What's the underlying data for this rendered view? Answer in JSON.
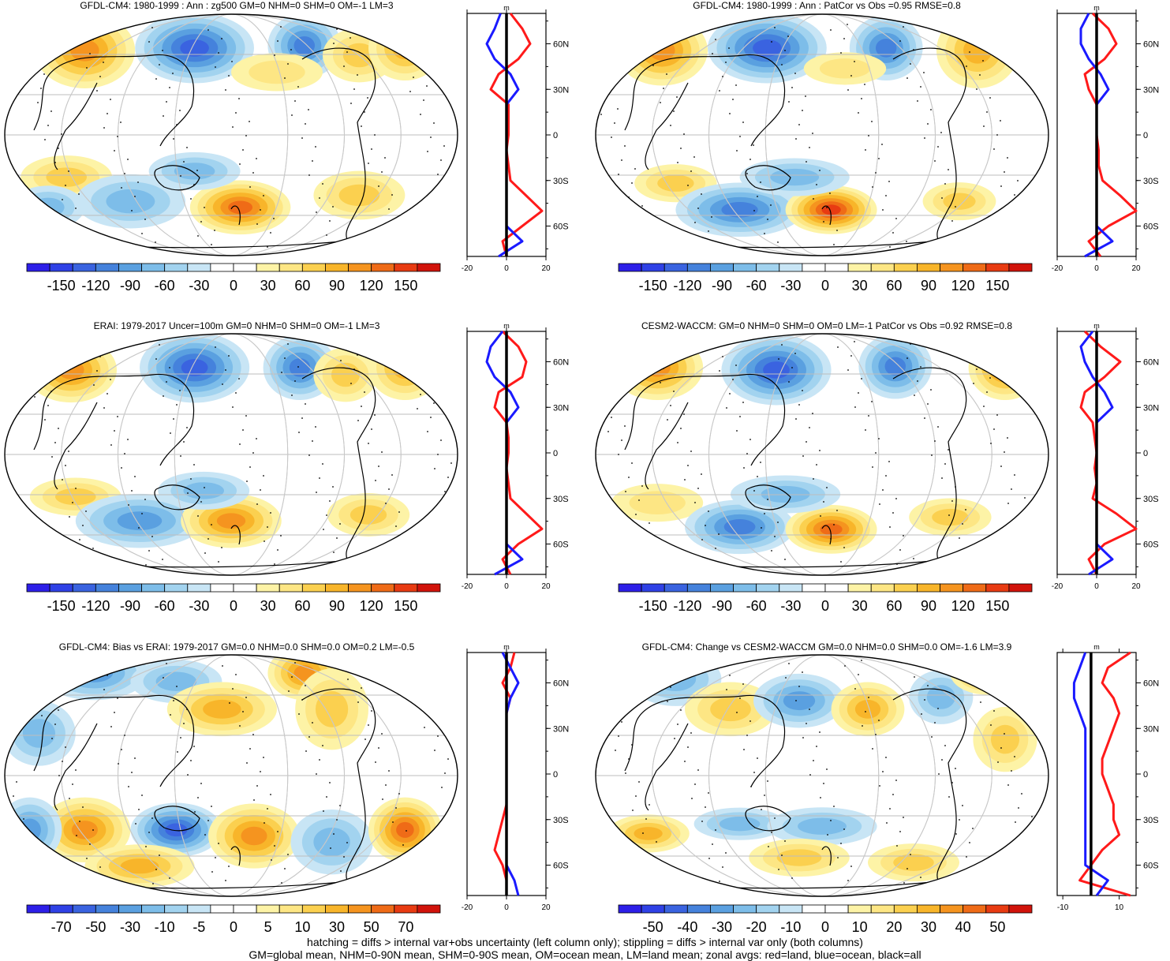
{
  "colors": {
    "negative": [
      "#2d1fe8",
      "#2f41e6",
      "#3a63e0",
      "#4582dc",
      "#5aa0e0",
      "#7dbde9",
      "#a2d3ef",
      "#c8e5f5"
    ],
    "positive": [
      "#fdf3a6",
      "#fde684",
      "#fbd04f",
      "#f8b52a",
      "#f5941f",
      "#ef6b17",
      "#e83b12",
      "#d1130b"
    ],
    "white": "#ffffff",
    "land_line": "#ff1a1a",
    "ocean_line": "#1a1aff",
    "all_line": "#000000"
  },
  "chart_data": [
    {
      "type": "heatmap",
      "title": "GFDL-CM4: 1980-1999 : Ann : zg500 GM=0 NHM=0 SHM=0 OM=-1 LM=3",
      "colorbar_ticks": [
        "-150",
        "-120",
        "-90",
        "-60",
        "-30",
        "0",
        "30",
        "60",
        "90",
        "120",
        "150"
      ],
      "zonal": {
        "xlim": [
          -20,
          20
        ],
        "xticks": [
          "-20",
          "0",
          "20"
        ],
        "units": "m",
        "lat_ticks": [
          "60N",
          "30N",
          "0",
          "30S",
          "60S"
        ],
        "lat": [
          80,
          70,
          60,
          50,
          40,
          30,
          20,
          10,
          0,
          -10,
          -20,
          -30,
          -40,
          -50,
          -60,
          -70,
          -80
        ],
        "land": [
          2,
          8,
          12,
          6,
          -4,
          -8,
          1,
          1,
          1,
          0,
          1,
          2,
          10,
          18,
          8,
          -2,
          0
        ],
        "ocean": [
          -3,
          -6,
          -10,
          -6,
          2,
          6,
          0,
          0,
          0,
          0,
          0,
          0,
          0,
          0,
          0,
          8,
          -4
        ],
        "all": [
          0,
          0,
          0,
          0,
          0,
          0,
          0,
          0,
          0,
          0,
          0,
          0,
          0,
          0,
          0,
          0,
          0
        ]
      }
    },
    {
      "type": "heatmap",
      "title": "GFDL-CM4: 1980-1999 : Ann : PatCor vs Obs =0.95 RMSE=0.8",
      "colorbar_ticks": [
        "-150",
        "-120",
        "-90",
        "-60",
        "-30",
        "0",
        "30",
        "60",
        "90",
        "120",
        "150"
      ],
      "zonal": {
        "xlim": [
          -20,
          20
        ],
        "xticks": [
          "-20",
          "0",
          "20"
        ],
        "units": "m",
        "lat_ticks": [
          "60N",
          "30N",
          "0",
          "30S",
          "60S"
        ],
        "lat": [
          80,
          70,
          60,
          50,
          40,
          30,
          20,
          10,
          0,
          -10,
          -20,
          -30,
          -40,
          -50,
          -60,
          -70,
          -80
        ],
        "land": [
          -2,
          6,
          10,
          4,
          -6,
          -4,
          0,
          0,
          0,
          1,
          1,
          3,
          12,
          20,
          6,
          -4,
          2
        ],
        "ocean": [
          -4,
          -8,
          -8,
          -4,
          2,
          6,
          0,
          0,
          0,
          0,
          0,
          0,
          0,
          0,
          0,
          8,
          -6
        ],
        "all": [
          0,
          0,
          0,
          0,
          0,
          0,
          0,
          0,
          0,
          0,
          0,
          0,
          0,
          0,
          0,
          0,
          0
        ]
      }
    },
    {
      "type": "heatmap",
      "title": "ERAI: 1979-2017 Uncer=100m GM=0 NHM=0 SHM=0 OM=-1 LM=3",
      "colorbar_ticks": [
        "-150",
        "-120",
        "-90",
        "-60",
        "-30",
        "0",
        "30",
        "60",
        "90",
        "120",
        "150"
      ],
      "zonal": {
        "xlim": [
          -20,
          20
        ],
        "xticks": [
          "-20",
          "0",
          "20"
        ],
        "units": "m",
        "lat_ticks": [
          "60N",
          "30N",
          "0",
          "30S",
          "60S"
        ],
        "lat": [
          80,
          70,
          60,
          50,
          40,
          30,
          20,
          10,
          0,
          -10,
          -20,
          -30,
          -40,
          -50,
          -60,
          -70,
          -80
        ],
        "land": [
          -2,
          6,
          10,
          8,
          -4,
          -6,
          0,
          1,
          1,
          0,
          1,
          2,
          10,
          18,
          6,
          -2,
          2
        ],
        "ocean": [
          -2,
          -8,
          -10,
          -6,
          2,
          6,
          0,
          0,
          0,
          0,
          0,
          0,
          0,
          0,
          0,
          8,
          -6
        ],
        "all": [
          0,
          0,
          0,
          0,
          0,
          0,
          0,
          0,
          0,
          0,
          0,
          0,
          0,
          0,
          0,
          0,
          0
        ]
      }
    },
    {
      "type": "heatmap",
      "title": "CESM2-WACCM: GM=0 NHM=0 SHM=0 OM=0 LM=-1 PatCor vs Obs =0.92 RMSE=0.8",
      "colorbar_ticks": [
        "-150",
        "-120",
        "-90",
        "-60",
        "-30",
        "0",
        "30",
        "60",
        "90",
        "120",
        "150"
      ],
      "zonal": {
        "xlim": [
          -20,
          20
        ],
        "xticks": [
          "-20",
          "0",
          "20"
        ],
        "units": "m",
        "lat_ticks": [
          "60N",
          "30N",
          "0",
          "30S",
          "60S"
        ],
        "lat": [
          80,
          70,
          60,
          50,
          40,
          30,
          20,
          10,
          0,
          -10,
          -20,
          -30,
          -40,
          -50,
          -60,
          -70,
          -80
        ],
        "land": [
          -6,
          2,
          12,
          4,
          -6,
          -8,
          -2,
          -1,
          0,
          -1,
          0,
          -2,
          10,
          20,
          4,
          -4,
          0
        ],
        "ocean": [
          -2,
          -8,
          -6,
          -2,
          4,
          8,
          0,
          0,
          0,
          0,
          0,
          0,
          0,
          0,
          0,
          8,
          -4
        ],
        "all": [
          0,
          0,
          0,
          0,
          0,
          0,
          0,
          0,
          0,
          0,
          0,
          0,
          0,
          0,
          0,
          0,
          0
        ]
      }
    },
    {
      "type": "heatmap",
      "title": "GFDL-CM4: Bias vs ERAI: 1979-2017 GM=0.0 NHM=0.0 SHM=0.0 OM=0.2 LM=-0.5",
      "colorbar_ticks": [
        "-70",
        "-50",
        "-30",
        "-10",
        "-5",
        "0",
        "5",
        "10",
        "30",
        "50",
        "70"
      ],
      "zonal": {
        "xlim": [
          -20,
          20
        ],
        "xticks": [
          "-20",
          "0",
          "20"
        ],
        "units": "m",
        "lat_ticks": [
          "60N",
          "30N",
          "0",
          "30S",
          "60S"
        ],
        "lat": [
          80,
          70,
          60,
          50,
          40,
          30,
          20,
          10,
          0,
          -10,
          -20,
          -30,
          -40,
          -50,
          -60,
          -70,
          -80
        ],
        "land": [
          4,
          2,
          -2,
          2,
          0,
          0,
          0,
          0,
          0,
          0,
          0,
          -2,
          -4,
          -6,
          -2,
          0,
          0
        ],
        "ocean": [
          -2,
          2,
          6,
          2,
          0,
          0,
          0,
          0,
          0,
          0,
          0,
          0,
          0,
          0,
          0,
          4,
          6
        ],
        "all": [
          0,
          0,
          0,
          0,
          0,
          0,
          0,
          0,
          0,
          0,
          0,
          0,
          0,
          0,
          0,
          0,
          0
        ]
      }
    },
    {
      "type": "heatmap",
      "title": "GFDL-CM4: Change vs CESM2-WACCM GM=0.0 NHM=0.0 SHM=0.0 OM=-1.6 LM=3.9",
      "colorbar_ticks": [
        "-50",
        "-40",
        "-30",
        "-20",
        "-10",
        "0",
        "10",
        "20",
        "30",
        "40",
        "50"
      ],
      "zonal": {
        "xlim": [
          -12,
          16
        ],
        "xticks": [
          "-10",
          "10"
        ],
        "units": "m",
        "lat_ticks": [
          "60N",
          "30N",
          "0",
          "30S",
          "60S"
        ],
        "lat": [
          80,
          70,
          60,
          50,
          40,
          30,
          20,
          10,
          0,
          -10,
          -20,
          -30,
          -40,
          -50,
          -60,
          -70,
          -80
        ],
        "land": [
          14,
          6,
          4,
          8,
          10,
          8,
          6,
          4,
          4,
          6,
          8,
          8,
          10,
          4,
          0,
          -4,
          14
        ],
        "ocean": [
          -2,
          -4,
          -6,
          -6,
          -4,
          -2,
          -2,
          -2,
          -2,
          -2,
          -2,
          -2,
          -2,
          -2,
          -2,
          6,
          2
        ],
        "all": [
          0,
          0,
          0,
          0,
          0,
          0,
          0,
          0,
          0,
          0,
          0,
          0,
          0,
          0,
          0,
          0,
          0
        ]
      }
    }
  ],
  "footer": {
    "line1": "hatching = diffs > internal var+obs uncertainty (left column only); stippling = diffs > internal var only (both columns)",
    "line2": "GM=global mean, NHM=0-90N mean, SHM=0-90S mean, OM=ocean mean, LM=land mean; zonal avgs: red=land, blue=ocean, black=all"
  }
}
